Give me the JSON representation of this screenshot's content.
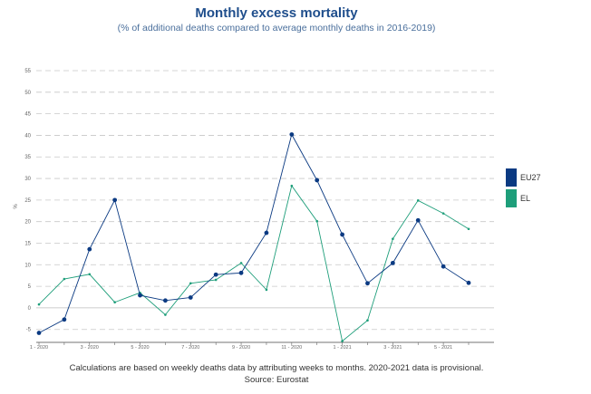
{
  "header": {
    "title": "Monthly excess mortality",
    "subtitle": "(% of additional deaths compared to average monthly deaths in 2016-2019)"
  },
  "footer": {
    "note": "Calculations are based on weekly deaths data by attributing weeks to months. 2020-2021 data is provisional.",
    "source": "Source: Eurostat"
  },
  "colors": {
    "EU27": "#0b3a82",
    "EL": "#1e9e7a",
    "grid": "#c8c8c8"
  },
  "chart_data": {
    "type": "line",
    "title": "Monthly excess mortality",
    "subtitle": "(% of additional deaths compared to average monthly deaths in 2016-2019)",
    "ylabel": "%",
    "ylim": [
      -8,
      55
    ],
    "yticks": [
      -5,
      0,
      5,
      10,
      15,
      20,
      25,
      30,
      35,
      40,
      45,
      50,
      55
    ],
    "x": [
      "1 - 2020",
      "2 - 2020",
      "3 - 2020",
      "4 - 2020",
      "5 - 2020",
      "6 - 2020",
      "7 - 2020",
      "8 - 2020",
      "9 - 2020",
      "10 - 2020",
      "11 - 2020",
      "12 - 2020",
      "1 - 2021",
      "2 - 2021",
      "3 - 2021",
      "4 - 2021",
      "5 - 2021",
      "6 - 2021"
    ],
    "xtick_labels": [
      "1 - 2020",
      "",
      "3 - 2020",
      "",
      "5 - 2020",
      "",
      "7 - 2020",
      "",
      "9 - 2020",
      "",
      "11 - 2020",
      "",
      "1 - 2021",
      "",
      "3 - 2021",
      "",
      "5 - 2021",
      ""
    ],
    "legend_position": "right",
    "grid": true,
    "series": [
      {
        "name": "EU27",
        "values": [
          -5.8,
          -2.7,
          13.6,
          25.0,
          2.9,
          1.7,
          2.4,
          7.7,
          8.1,
          17.4,
          40.2,
          29.6,
          17.0,
          5.7,
          10.4,
          20.3,
          9.6,
          5.8
        ]
      },
      {
        "name": "EL",
        "values": [
          0.8,
          6.7,
          7.8,
          1.3,
          3.5,
          -1.6,
          5.7,
          6.5,
          10.4,
          4.2,
          28.3,
          20.1,
          -7.7,
          -2.9,
          16.0,
          24.9,
          21.9,
          18.3
        ]
      }
    ]
  }
}
